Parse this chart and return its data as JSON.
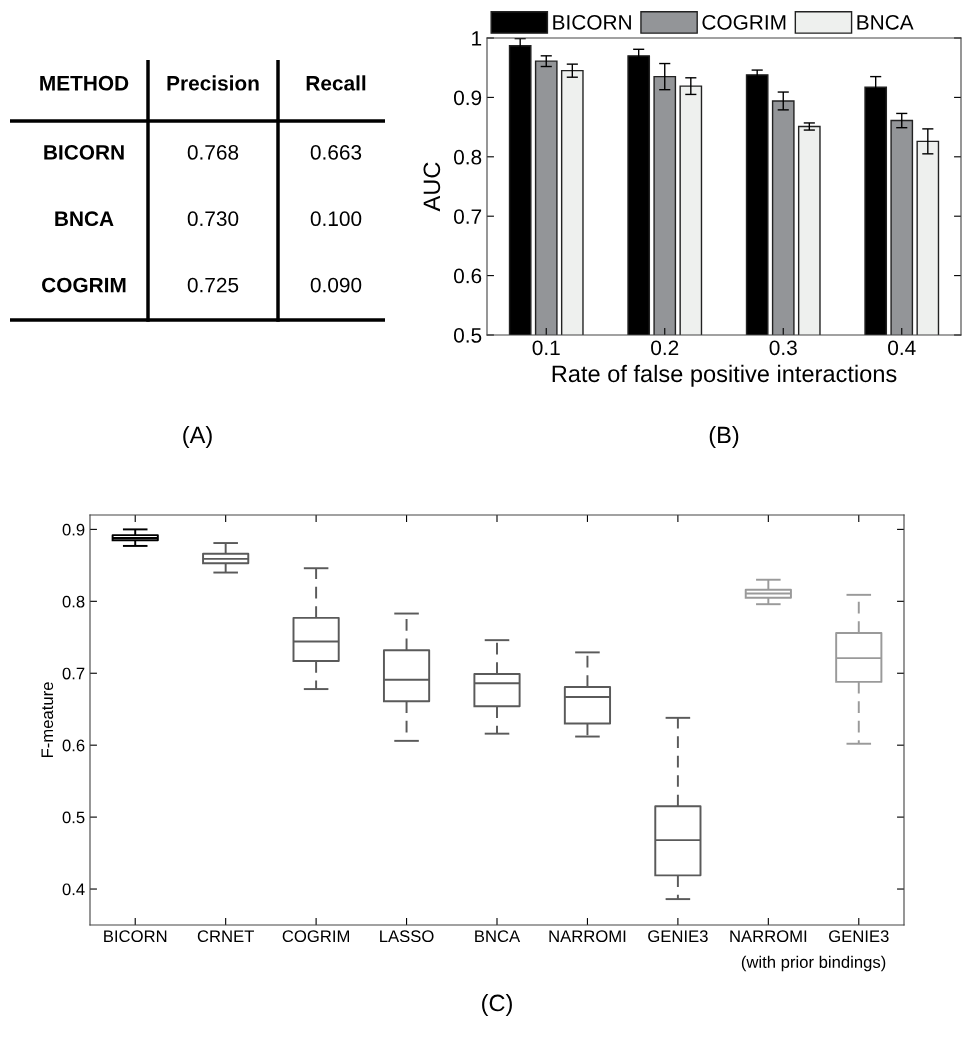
{
  "chart_data": [
    {
      "type": "other",
      "title": "(A)",
      "ylabel": "METHOD",
      "categories": [
        "Precision",
        "Recall"
      ],
      "y_categories": [
        "BICORN",
        "BNCA",
        "COGRIM"
      ],
      "cell_labels": [
        [
          "0.768",
          "0.663"
        ],
        [
          "0.730",
          "0.100"
        ],
        [
          "0.725",
          "0.090"
        ]
      ]
    },
    {
      "type": "bar",
      "title": "(B)",
      "xlabel": "Rate of false positive interactions",
      "ylabel": "AUC",
      "categories": [
        "0.1",
        "0.2",
        "0.3",
        "0.4"
      ],
      "series": [
        {
          "name": "BICORN",
          "color": "#000000",
          "values": [
            0.987,
            0.97,
            0.938,
            0.917
          ],
          "errors": [
            0.012,
            0.011,
            0.008,
            0.018
          ]
        },
        {
          "name": "COGRIM",
          "color": "#939598",
          "values": [
            0.961,
            0.935,
            0.894,
            0.861
          ],
          "errors": [
            0.009,
            0.022,
            0.015,
            0.012
          ]
        },
        {
          "name": "BNCA",
          "color": "#eef0ee",
          "values": [
            0.945,
            0.919,
            0.851,
            0.826
          ],
          "errors": [
            0.011,
            0.014,
            0.006,
            0.021
          ]
        }
      ],
      "ylim": [
        0.5,
        1
      ],
      "yticks": [
        0.5,
        0.6,
        0.7,
        0.8,
        0.9,
        1
      ],
      "legend": "top"
    },
    {
      "type": "box",
      "title": "(C)",
      "ylabel": "F-meature",
      "categories": [
        "BICORN",
        "CRNET",
        "COGRIM",
        "LASSO",
        "BNCA",
        "NARROMI",
        "GENIE3",
        "NARROMI",
        "GENIE3"
      ],
      "colors": [
        "#000000",
        "#5a5a5a",
        "#5a5a5a",
        "#5a5a5a",
        "#5a5a5a",
        "#5a5a5a",
        "#5a5a5a",
        "#9a9a9a",
        "#9a9a9a"
      ],
      "boxes": [
        {
          "low": 0.877,
          "q1": 0.885,
          "median": 0.888,
          "q3": 0.892,
          "high": 0.9
        },
        {
          "low": 0.84,
          "q1": 0.853,
          "median": 0.859,
          "q3": 0.866,
          "high": 0.881
        },
        {
          "low": 0.678,
          "q1": 0.717,
          "median": 0.744,
          "q3": 0.777,
          "high": 0.846
        },
        {
          "low": 0.606,
          "q1": 0.661,
          "median": 0.691,
          "q3": 0.732,
          "high": 0.783
        },
        {
          "low": 0.616,
          "q1": 0.654,
          "median": 0.686,
          "q3": 0.699,
          "high": 0.746
        },
        {
          "low": 0.612,
          "q1": 0.63,
          "median": 0.667,
          "q3": 0.681,
          "high": 0.729
        },
        {
          "low": 0.386,
          "q1": 0.419,
          "median": 0.468,
          "q3": 0.515,
          "high": 0.638
        },
        {
          "low": 0.796,
          "q1": 0.805,
          "median": 0.811,
          "q3": 0.816,
          "high": 0.83
        },
        {
          "low": 0.602,
          "q1": 0.688,
          "median": 0.721,
          "q3": 0.756,
          "high": 0.809
        }
      ],
      "ylim": [
        0.35,
        0.92
      ],
      "yticks": [
        0.4,
        0.5,
        0.6,
        0.7,
        0.8,
        0.9
      ],
      "line_style": "dashed",
      "annotations": [
        "(with prior bindings)"
      ]
    }
  ]
}
